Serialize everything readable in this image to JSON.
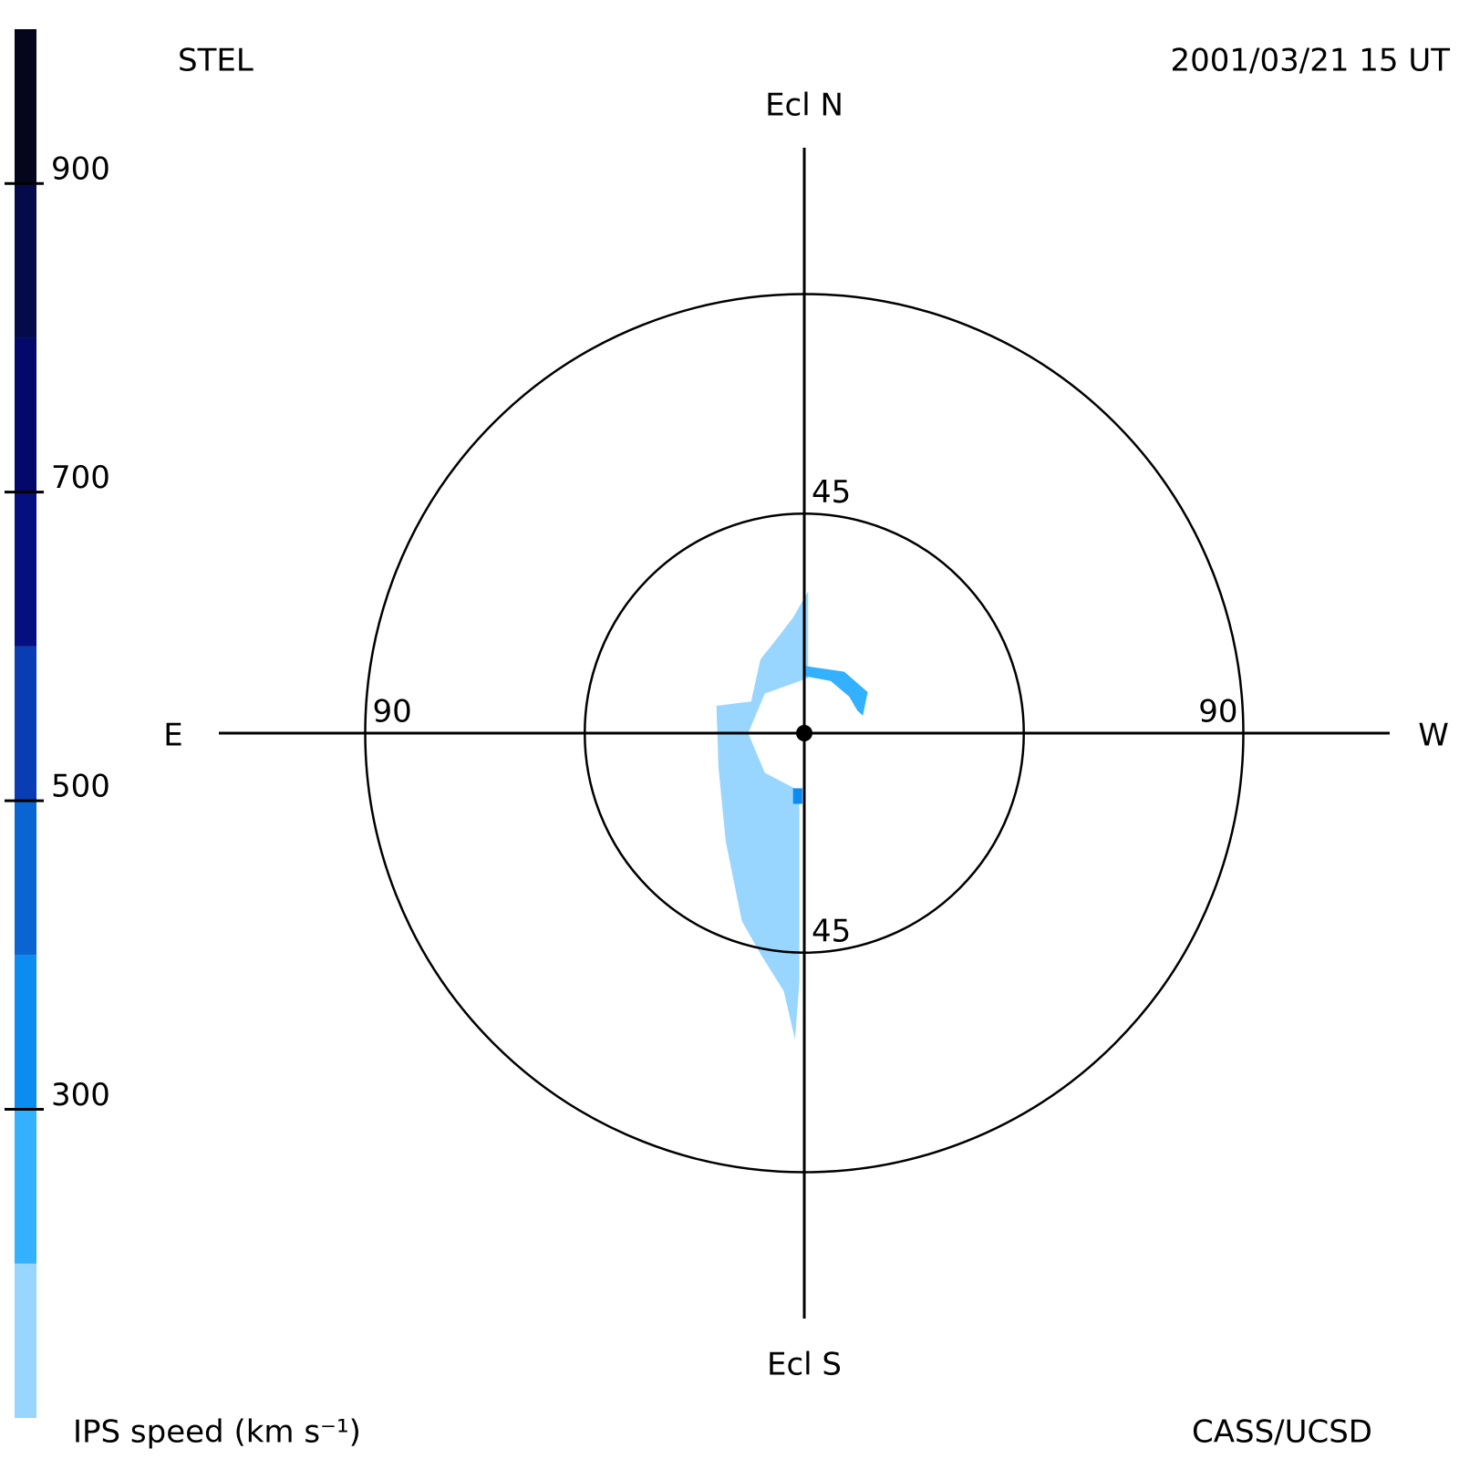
{
  "chart_data": {
    "type": "skymap",
    "title": "STEL",
    "subtitle": "2001/03/21 15 UT",
    "credit": "CASS/UCSD",
    "directions": {
      "north": "Ecl N",
      "south": "Ecl S",
      "east": "E",
      "west": "W"
    },
    "rlim": [
      0,
      120
    ],
    "rticks": [
      45,
      90
    ],
    "colorbar": {
      "label": "IPS speed (km s⁻¹)",
      "bins": [
        100,
        200,
        300,
        400,
        500,
        600,
        700,
        800,
        900,
        1000
      ],
      "colors": [
        "#99d6ff",
        "#33b0ff",
        "#0a8cf0",
        "#0a64d2",
        "#0a3cb4",
        "#050f80",
        "#04086a",
        "#040a4a",
        "#05061e"
      ],
      "ticks": [
        300,
        500,
        700,
        900
      ]
    },
    "regions": [
      {
        "value": 150,
        "points": [
          [
            0.8,
            29.1
          ],
          [
            0.8,
            11.3
          ],
          [
            -8.1,
            8.1
          ],
          [
            -11.5,
            0
          ],
          [
            -8.1,
            -8.1
          ],
          [
            -2.0,
            -11.3
          ],
          [
            -1.0,
            -11.7
          ],
          [
            -1.0,
            -50.9
          ],
          [
            -1.9,
            -62.8
          ],
          [
            -4.2,
            -52.9
          ],
          [
            -9.0,
            -45.2
          ],
          [
            -12.8,
            -38.5
          ],
          [
            -16.1,
            -22.2
          ],
          [
            -17.6,
            -6.9
          ],
          [
            -18.0,
            5.6
          ],
          [
            -10.9,
            6.5
          ],
          [
            -9.0,
            15.1
          ],
          [
            -5.2,
            19.9
          ],
          [
            -2.3,
            23.7
          ]
        ]
      },
      {
        "value": 250,
        "points": [
          [
            0,
            13.8
          ],
          [
            8.2,
            12.6
          ],
          [
            13,
            8.4
          ],
          [
            12,
            3.6
          ],
          [
            10.9,
            4.6
          ],
          [
            9.2,
            7.5
          ],
          [
            5.4,
            10.7
          ],
          [
            0,
            11.7
          ]
        ]
      },
      {
        "value": 350,
        "points": [
          [
            -2.3,
            -11.3
          ],
          [
            -0.4,
            -11.3
          ],
          [
            -0.4,
            -14.5
          ],
          [
            -2.3,
            -14.5
          ]
        ]
      }
    ]
  }
}
